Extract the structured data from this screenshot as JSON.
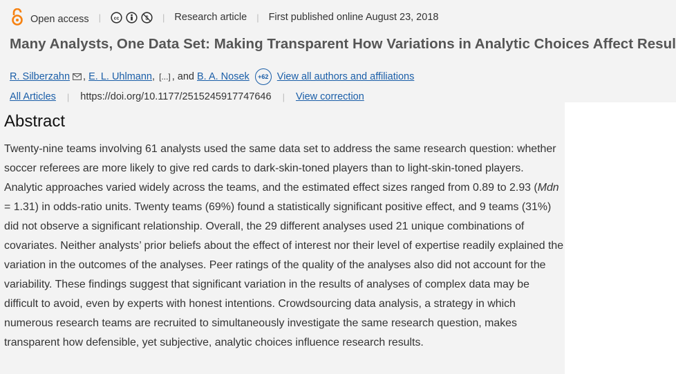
{
  "meta": {
    "open_access_label": "Open access",
    "license_icons": [
      "cc-icon",
      "by-icon",
      "nc-icon"
    ],
    "article_type": "Research article",
    "published": "First published online August 23, 2018"
  },
  "title": "Many Analysts, One Data Set: Making Transparent How Variations in Analytic Choices Affect Results",
  "authors": {
    "first": "R. Silberzahn",
    "second": "E. L. Uhlmann",
    "ellipsis": "[...]",
    "and": ", and",
    "last": "B. A. Nosek",
    "more_count": "+62",
    "view_all": "View all authors and affiliations"
  },
  "links": {
    "all_articles": "All Articles",
    "doi": "https://doi.org/10.1177/2515245917747646",
    "view_correction": "View correction"
  },
  "abstract": {
    "heading": "Abstract",
    "part1": "Twenty-nine teams involving 61 analysts used the same data set to address the same research question: whether soccer referees are more likely to give red cards to dark-skin-toned players than to light-skin-toned players. Analytic approaches varied widely across the teams, and the estimated effect sizes ranged from 0.89 to 2.93 (",
    "mdn": "Mdn",
    "part2": " = 1.31) in odds-ratio units. Twenty teams (69%) found a statistically significant positive effect, and 9 teams (31%) did not observe a significant relationship. Overall, the 29 different analyses used 21 unique combinations of covariates. Neither analysts’ prior beliefs about the effect of interest nor their level of expertise readily explained the variation in the outcomes of the analyses. Peer ratings of the quality of the analyses also did not account for the variability. These findings suggest that significant variation in the results of analyses of complex data may be difficult to avoid, even by experts with honest intentions. Crowdsourcing data analysis, a strategy in which numerous research teams are recruited to simultaneously investigate the same research question, makes transparent how defensible, yet subjective, analytic choices influence research results."
  },
  "colors": {
    "link": "#1a5ea8",
    "open_access": "#f68212",
    "panel": "#f3f3f3"
  }
}
